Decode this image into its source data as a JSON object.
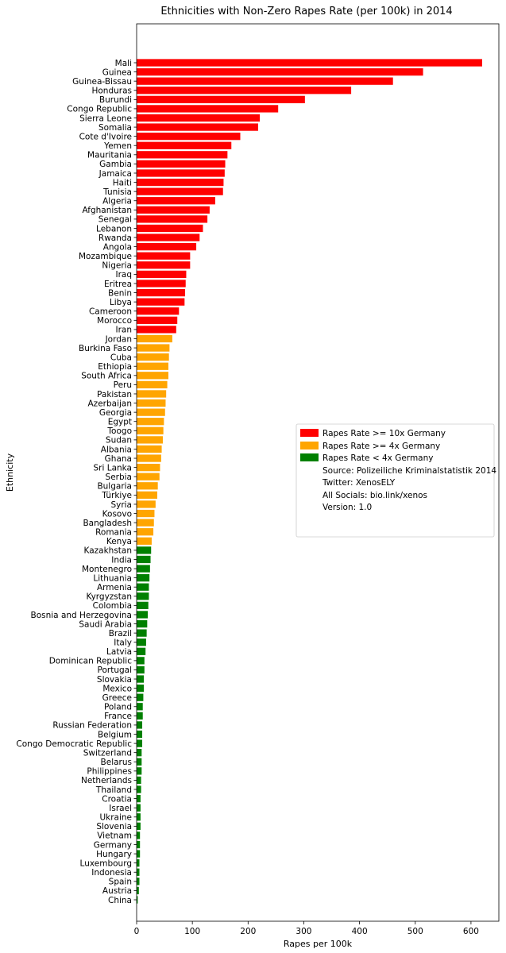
{
  "chart_data": {
    "type": "bar",
    "orientation": "horizontal",
    "title": "Ethnicities with Non-Zero Rapes Rate (per 100k) in 2014",
    "xlabel": "Rapes per 100k",
    "ylabel": "Ethnicity",
    "xlim": [
      0,
      650
    ],
    "xticks": [
      0,
      100,
      200,
      300,
      400,
      500,
      600
    ],
    "grid": false,
    "legend_position": "center-right",
    "colors": {
      "high": "#ff0000",
      "mid": "#ffa500",
      "low": "#008000"
    },
    "legend": {
      "items": [
        {
          "label": "Rapes Rate >= 10x Germany",
          "color": "#ff0000"
        },
        {
          "label": "Rapes Rate >= 4x Germany",
          "color": "#ffa500"
        },
        {
          "label": "Rapes Rate < 4x Germany",
          "color": "#008000"
        }
      ],
      "notes": [
        "Source: Polizeiliche Kriminalstatistik 2014",
        "Twitter: XenosELY",
        "All Socials: bio.link/xenos",
        "Version: 1.0"
      ]
    },
    "bars": [
      {
        "category": "Mali",
        "value": 620,
        "group": "high"
      },
      {
        "category": "Guinea",
        "value": 514,
        "group": "high"
      },
      {
        "category": "Guinea-Bissau",
        "value": 460,
        "group": "high"
      },
      {
        "category": "Honduras",
        "value": 385,
        "group": "high"
      },
      {
        "category": "Burundi",
        "value": 302,
        "group": "high"
      },
      {
        "category": "Congo Republic",
        "value": 254,
        "group": "high"
      },
      {
        "category": "Sierra Leone",
        "value": 221,
        "group": "high"
      },
      {
        "category": "Somalia",
        "value": 218,
        "group": "high"
      },
      {
        "category": "Cote d'Ivoire",
        "value": 186,
        "group": "high"
      },
      {
        "category": "Yemen",
        "value": 170,
        "group": "high"
      },
      {
        "category": "Mauritania",
        "value": 163,
        "group": "high"
      },
      {
        "category": "Gambia",
        "value": 159,
        "group": "high"
      },
      {
        "category": "Jamaica",
        "value": 158,
        "group": "high"
      },
      {
        "category": "Haiti",
        "value": 156,
        "group": "high"
      },
      {
        "category": "Tunisia",
        "value": 155,
        "group": "high"
      },
      {
        "category": "Algeria",
        "value": 141,
        "group": "high"
      },
      {
        "category": "Afghanistan",
        "value": 131,
        "group": "high"
      },
      {
        "category": "Senegal",
        "value": 127,
        "group": "high"
      },
      {
        "category": "Lebanon",
        "value": 119,
        "group": "high"
      },
      {
        "category": "Rwanda",
        "value": 113,
        "group": "high"
      },
      {
        "category": "Angola",
        "value": 107,
        "group": "high"
      },
      {
        "category": "Mozambique",
        "value": 96,
        "group": "high"
      },
      {
        "category": "Nigeria",
        "value": 96,
        "group": "high"
      },
      {
        "category": "Iraq",
        "value": 89,
        "group": "high"
      },
      {
        "category": "Eritrea",
        "value": 88,
        "group": "high"
      },
      {
        "category": "Benin",
        "value": 87,
        "group": "high"
      },
      {
        "category": "Libya",
        "value": 86,
        "group": "high"
      },
      {
        "category": "Cameroon",
        "value": 76,
        "group": "high"
      },
      {
        "category": "Morocco",
        "value": 73,
        "group": "high"
      },
      {
        "category": "Iran",
        "value": 71,
        "group": "high"
      },
      {
        "category": "Jordan",
        "value": 64,
        "group": "mid"
      },
      {
        "category": "Burkina Faso",
        "value": 59,
        "group": "mid"
      },
      {
        "category": "Cuba",
        "value": 58,
        "group": "mid"
      },
      {
        "category": "Ethiopia",
        "value": 57,
        "group": "mid"
      },
      {
        "category": "South Africa",
        "value": 57,
        "group": "mid"
      },
      {
        "category": "Peru",
        "value": 55,
        "group": "mid"
      },
      {
        "category": "Pakistan",
        "value": 53,
        "group": "mid"
      },
      {
        "category": "Azerbaijan",
        "value": 52,
        "group": "mid"
      },
      {
        "category": "Georgia",
        "value": 51,
        "group": "mid"
      },
      {
        "category": "Egypt",
        "value": 49,
        "group": "mid"
      },
      {
        "category": "Toogo",
        "value": 48,
        "group": "mid"
      },
      {
        "category": "Sudan",
        "value": 47,
        "group": "mid"
      },
      {
        "category": "Albania",
        "value": 45,
        "group": "mid"
      },
      {
        "category": "Ghana",
        "value": 44,
        "group": "mid"
      },
      {
        "category": "Sri Lanka",
        "value": 42,
        "group": "mid"
      },
      {
        "category": "Serbia",
        "value": 41,
        "group": "mid"
      },
      {
        "category": "Bulgaria",
        "value": 38,
        "group": "mid"
      },
      {
        "category": "Türkiye",
        "value": 37,
        "group": "mid"
      },
      {
        "category": "Syria",
        "value": 34,
        "group": "mid"
      },
      {
        "category": "Kosovo",
        "value": 32,
        "group": "mid"
      },
      {
        "category": "Bangladesh",
        "value": 31,
        "group": "mid"
      },
      {
        "category": "Romania",
        "value": 30,
        "group": "mid"
      },
      {
        "category": "Kenya",
        "value": 27,
        "group": "mid"
      },
      {
        "category": "Kazakhstan",
        "value": 26,
        "group": "low"
      },
      {
        "category": "India",
        "value": 25,
        "group": "low"
      },
      {
        "category": "Montenegro",
        "value": 24,
        "group": "low"
      },
      {
        "category": "Lithuania",
        "value": 23,
        "group": "low"
      },
      {
        "category": "Armenia",
        "value": 22,
        "group": "low"
      },
      {
        "category": "Kyrgyzstan",
        "value": 22,
        "group": "low"
      },
      {
        "category": "Colombia",
        "value": 21,
        "group": "low"
      },
      {
        "category": "Bosnia and Herzegovina",
        "value": 20,
        "group": "low"
      },
      {
        "category": "Saudi Arabia",
        "value": 19,
        "group": "low"
      },
      {
        "category": "Brazil",
        "value": 18,
        "group": "low"
      },
      {
        "category": "Italy",
        "value": 17,
        "group": "low"
      },
      {
        "category": "Latvia",
        "value": 16,
        "group": "low"
      },
      {
        "category": "Dominican Republic",
        "value": 14,
        "group": "low"
      },
      {
        "category": "Portugal",
        "value": 14,
        "group": "low"
      },
      {
        "category": "Slovakia",
        "value": 13,
        "group": "low"
      },
      {
        "category": "Mexico",
        "value": 13,
        "group": "low"
      },
      {
        "category": "Greece",
        "value": 12,
        "group": "low"
      },
      {
        "category": "Poland",
        "value": 11,
        "group": "low"
      },
      {
        "category": "France",
        "value": 11,
        "group": "low"
      },
      {
        "category": "Russian Federation",
        "value": 10,
        "group": "low"
      },
      {
        "category": "Belgium",
        "value": 10,
        "group": "low"
      },
      {
        "category": "Congo Democratic Republic",
        "value": 10,
        "group": "low"
      },
      {
        "category": "Switzerland",
        "value": 9,
        "group": "low"
      },
      {
        "category": "Belarus",
        "value": 9,
        "group": "low"
      },
      {
        "category": "Philippines",
        "value": 9,
        "group": "low"
      },
      {
        "category": "Netherlands",
        "value": 8,
        "group": "low"
      },
      {
        "category": "Thailand",
        "value": 8,
        "group": "low"
      },
      {
        "category": "Croatia",
        "value": 7,
        "group": "low"
      },
      {
        "category": "Israel",
        "value": 7,
        "group": "low"
      },
      {
        "category": "Ukraine",
        "value": 7,
        "group": "low"
      },
      {
        "category": "Slovenia",
        "value": 7,
        "group": "low"
      },
      {
        "category": "Vietnam",
        "value": 6,
        "group": "low"
      },
      {
        "category": "Germany",
        "value": 6,
        "group": "low"
      },
      {
        "category": "Hungary",
        "value": 6,
        "group": "low"
      },
      {
        "category": "Luxembourg",
        "value": 5,
        "group": "low"
      },
      {
        "category": "Indonesia",
        "value": 5,
        "group": "low"
      },
      {
        "category": "Spain",
        "value": 5,
        "group": "low"
      },
      {
        "category": "Austria",
        "value": 4,
        "group": "low"
      },
      {
        "category": "China",
        "value": 2,
        "group": "low"
      }
    ]
  }
}
